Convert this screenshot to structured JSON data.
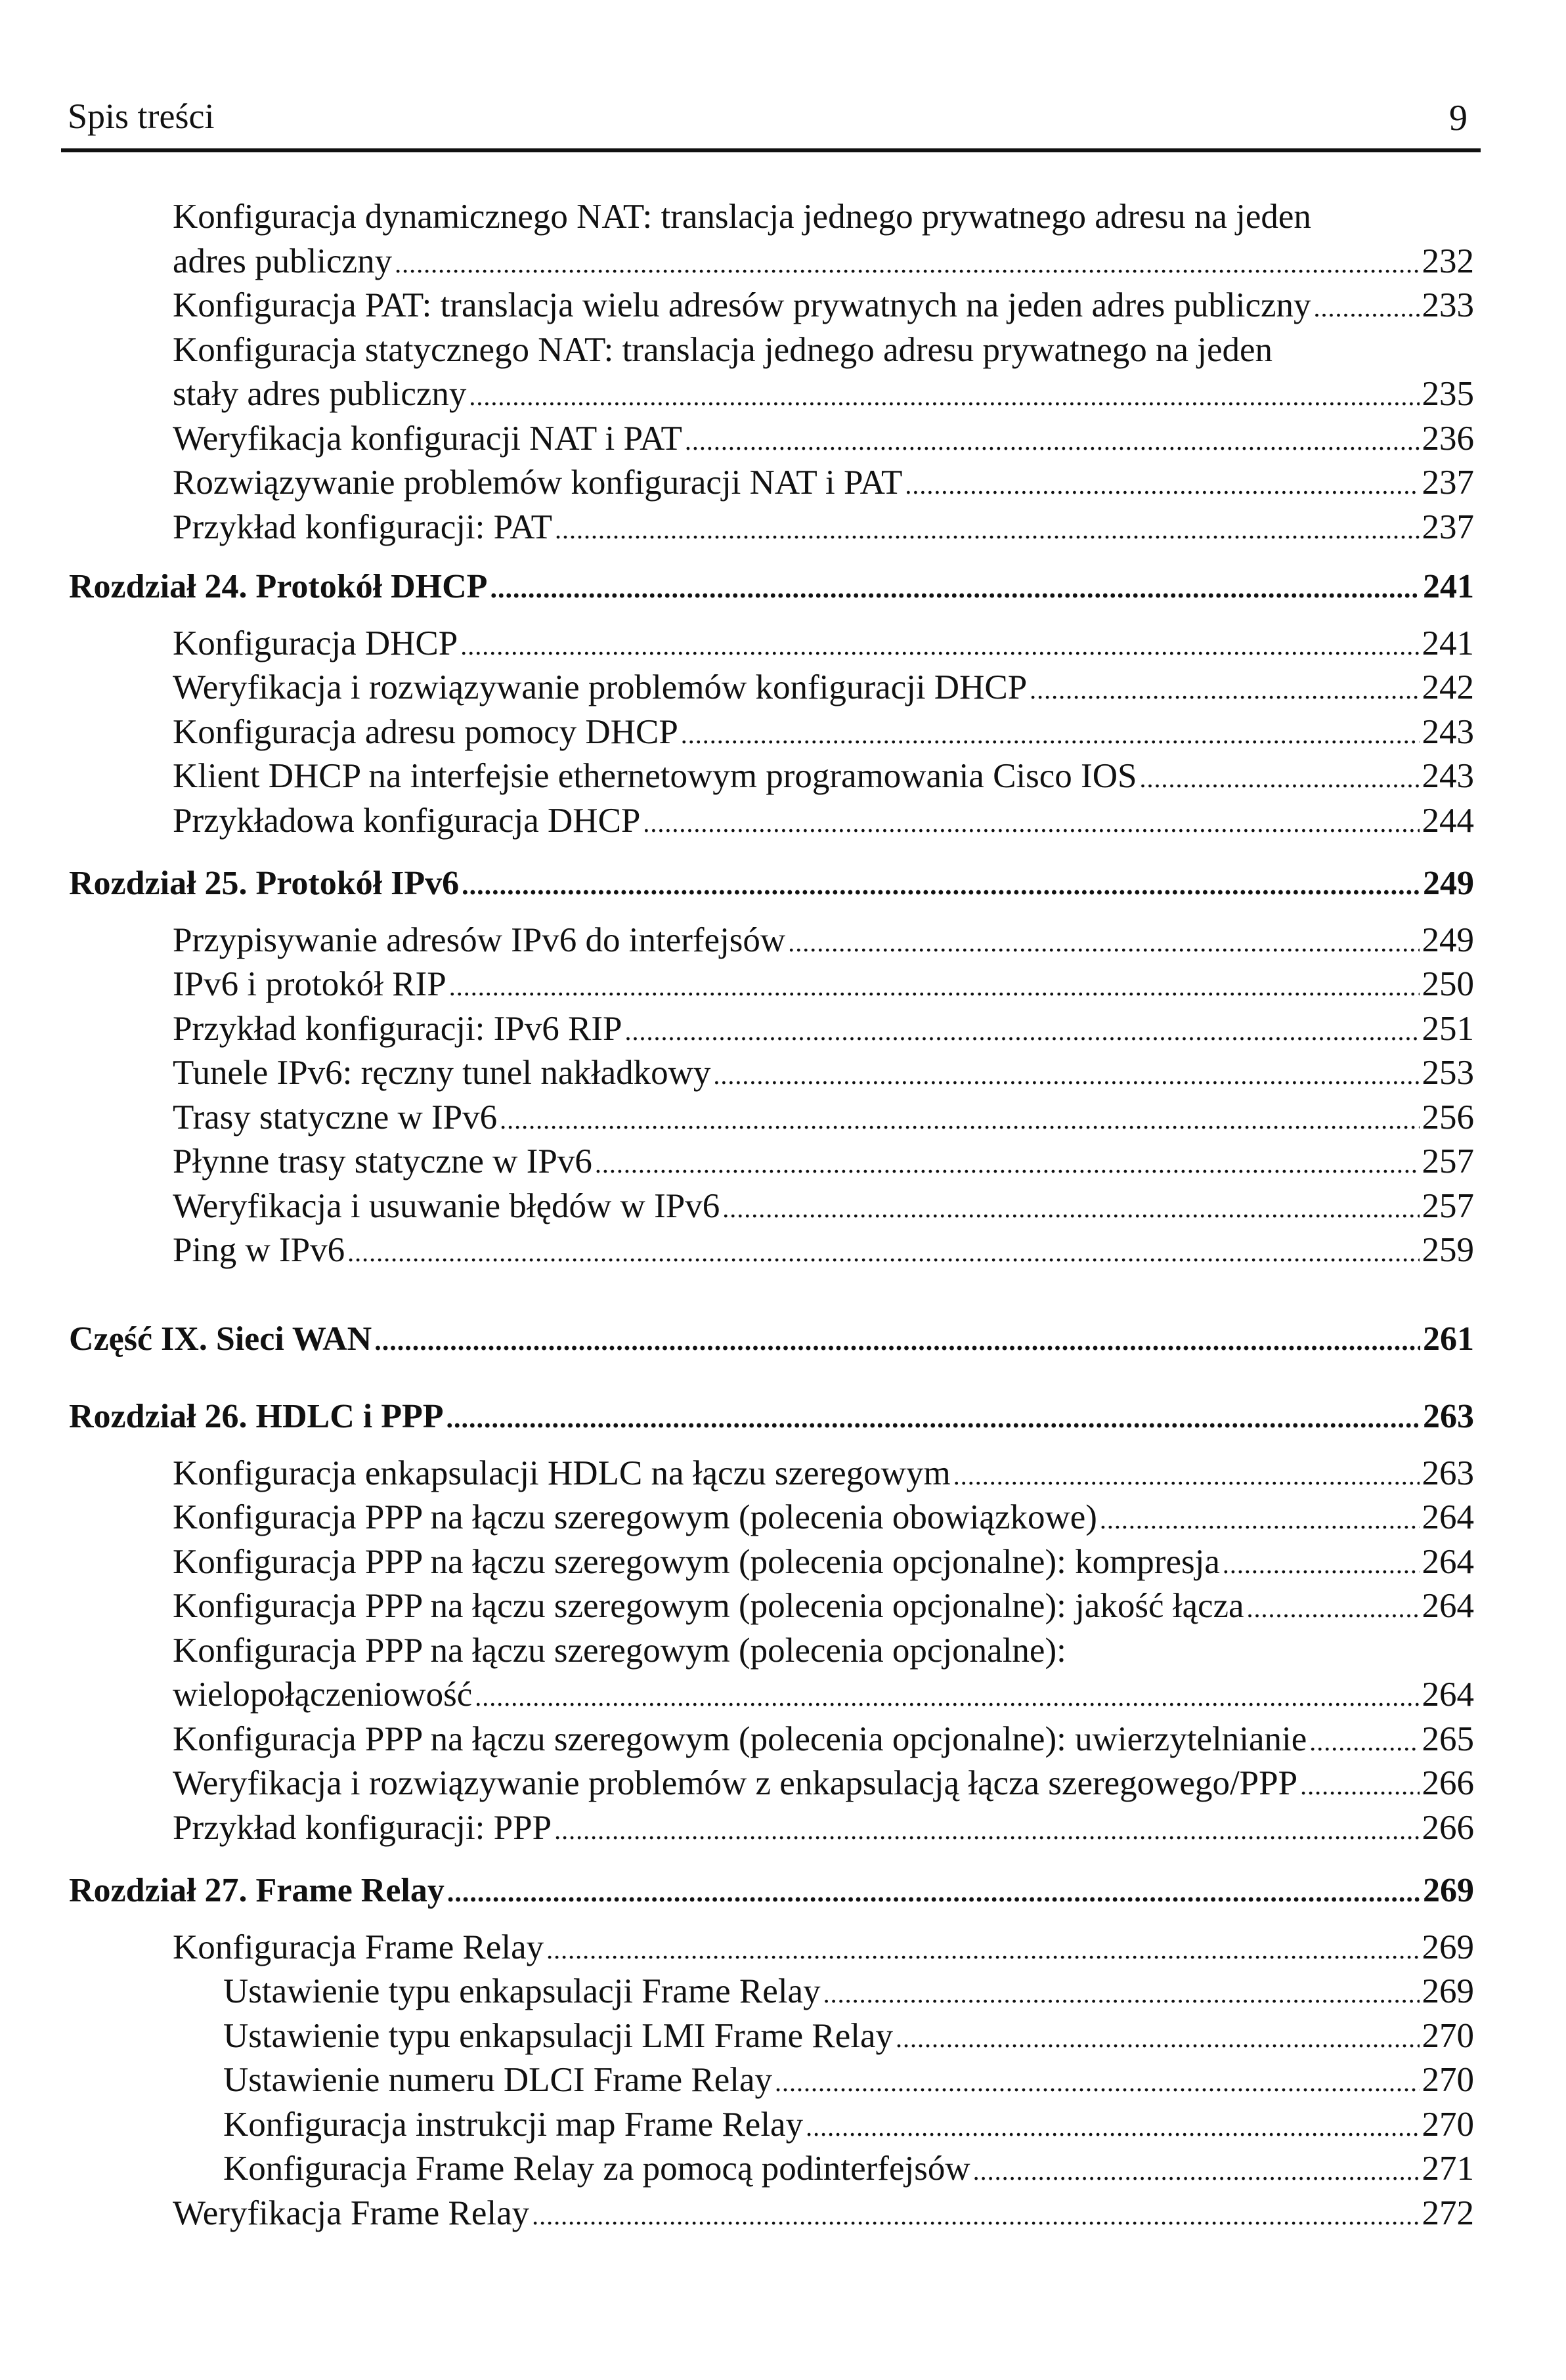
{
  "header": {
    "title": "Spis treści",
    "page": "9"
  },
  "entries": [
    {
      "level": 1,
      "lines": [
        "Konfiguracja dynamicznego NAT: translacja jednego prywatnego adresu na jeden",
        "adres publiczny"
      ],
      "page": "232"
    },
    {
      "level": 1,
      "lines": [
        "Konfiguracja PAT: translacja wielu adresów prywatnych na jeden adres publiczny"
      ],
      "page": "233"
    },
    {
      "level": 1,
      "lines": [
        "Konfiguracja statycznego NAT: translacja jednego adresu prywatnego na jeden",
        "stały adres publiczny"
      ],
      "page": "235"
    },
    {
      "level": 1,
      "lines": [
        "Weryfikacja konfiguracji NAT i PAT"
      ],
      "page": "236"
    },
    {
      "level": 1,
      "lines": [
        "Rozwiązywanie problemów konfiguracji NAT i PAT"
      ],
      "page": "237"
    },
    {
      "level": 1,
      "lines": [
        "Przykład konfiguracji: PAT"
      ],
      "page": "237"
    },
    {
      "level": 0,
      "lines": [
        "Rozdział 24. Protokół DHCP"
      ],
      "page": "241"
    },
    {
      "level": 1,
      "lines": [
        "Konfiguracja DHCP"
      ],
      "page": "241"
    },
    {
      "level": 1,
      "lines": [
        "Weryfikacja i rozwiązywanie problemów konfiguracji DHCP"
      ],
      "page": "242"
    },
    {
      "level": 1,
      "lines": [
        "Konfiguracja adresu pomocy DHCP"
      ],
      "page": "243"
    },
    {
      "level": 1,
      "lines": [
        "Klient DHCP na interfejsie ethernetowym programowania Cisco IOS"
      ],
      "page": "243"
    },
    {
      "level": 1,
      "lines": [
        "Przykładowa konfiguracja DHCP"
      ],
      "page": "244"
    },
    {
      "level": 0,
      "lines": [
        "Rozdział 25. Protokół IPv6"
      ],
      "page": "249"
    },
    {
      "level": 1,
      "lines": [
        "Przypisywanie adresów IPv6 do interfejsów"
      ],
      "page": "249"
    },
    {
      "level": 1,
      "lines": [
        "IPv6 i protokół RIP"
      ],
      "page": "250"
    },
    {
      "level": 1,
      "lines": [
        "Przykład konfiguracji: IPv6 RIP"
      ],
      "page": "251"
    },
    {
      "level": 1,
      "lines": [
        "Tunele IPv6: ręczny tunel nakładkowy"
      ],
      "page": "253"
    },
    {
      "level": 1,
      "lines": [
        "Trasy statyczne w IPv6"
      ],
      "page": "256"
    },
    {
      "level": 1,
      "lines": [
        "Płynne trasy statyczne w IPv6"
      ],
      "page": "257"
    },
    {
      "level": 1,
      "lines": [
        "Weryfikacja i usuwanie błędów w IPv6"
      ],
      "page": "257"
    },
    {
      "level": 1,
      "lines": [
        "Ping w IPv6"
      ],
      "page": "259"
    },
    {
      "level": 0,
      "part": true,
      "lines": [
        "Część IX. Sieci WAN"
      ],
      "page": "261"
    },
    {
      "level": 0,
      "lines": [
        "Rozdział 26. HDLC i PPP"
      ],
      "page": "263"
    },
    {
      "level": 1,
      "lines": [
        "Konfiguracja enkapsulacji HDLC na łączu szeregowym"
      ],
      "page": "263"
    },
    {
      "level": 1,
      "lines": [
        "Konfiguracja PPP na łączu szeregowym (polecenia obowiązkowe)"
      ],
      "page": "264"
    },
    {
      "level": 1,
      "lines": [
        "Konfiguracja PPP na łączu szeregowym (polecenia opcjonalne): kompresja"
      ],
      "page": "264"
    },
    {
      "level": 1,
      "lines": [
        "Konfiguracja PPP na łączu szeregowym (polecenia opcjonalne): jakość łącza"
      ],
      "page": "264"
    },
    {
      "level": 1,
      "lines": [
        "Konfiguracja PPP na łączu szeregowym (polecenia opcjonalne):",
        "wielopołączeniowość"
      ],
      "page": "264"
    },
    {
      "level": 1,
      "lines": [
        "Konfiguracja PPP na łączu szeregowym (polecenia opcjonalne): uwierzytelnianie"
      ],
      "page": "265"
    },
    {
      "level": 1,
      "lines": [
        "Weryfikacja i rozwiązywanie problemów z enkapsulacją łącza szeregowego/PPP"
      ],
      "page": "266"
    },
    {
      "level": 1,
      "lines": [
        "Przykład konfiguracji: PPP"
      ],
      "page": "266"
    },
    {
      "level": 0,
      "lines": [
        "Rozdział 27. Frame Relay"
      ],
      "page": "269"
    },
    {
      "level": 1,
      "lines": [
        "Konfiguracja Frame Relay"
      ],
      "page": "269"
    },
    {
      "level": 2,
      "lines": [
        "Ustawienie typu enkapsulacji Frame Relay"
      ],
      "page": "269"
    },
    {
      "level": 2,
      "lines": [
        "Ustawienie typu enkapsulacji LMI Frame Relay"
      ],
      "page": "270"
    },
    {
      "level": 2,
      "lines": [
        "Ustawienie numeru DLCI Frame Relay"
      ],
      "page": "270"
    },
    {
      "level": 2,
      "lines": [
        "Konfiguracja instrukcji map Frame Relay"
      ],
      "page": "270"
    },
    {
      "level": 2,
      "lines": [
        "Konfiguracja Frame Relay za pomocą podinterfejsów"
      ],
      "page": "271"
    },
    {
      "level": 1,
      "lines": [
        "Weryfikacja Frame Relay"
      ],
      "page": "272"
    }
  ]
}
